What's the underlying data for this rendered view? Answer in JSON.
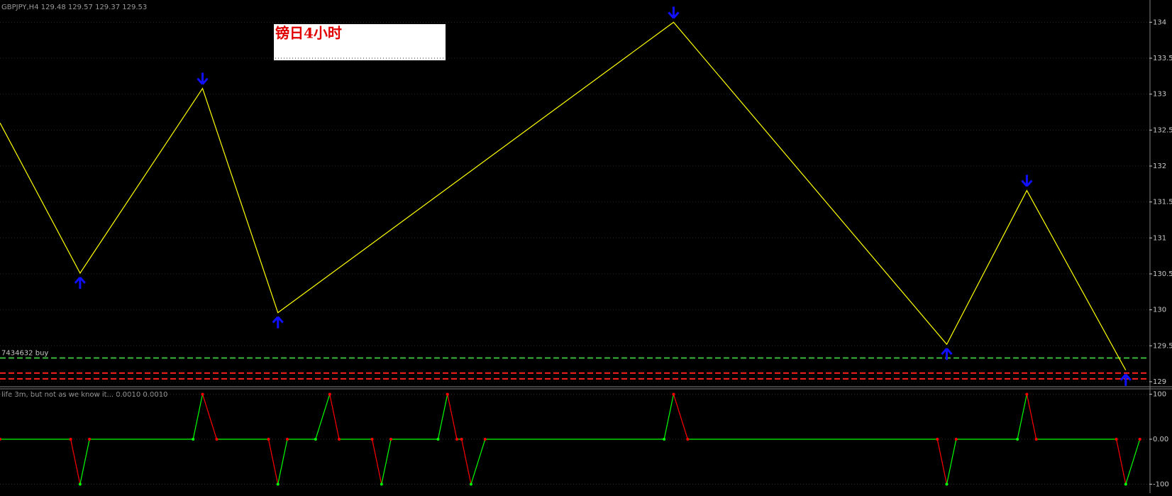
{
  "chart_data": [
    {
      "type": "line",
      "title": "GBPJPY,H4 129.48 129.57 129.37 129.53",
      "annotation": "镑日4小时",
      "x": [
        0,
        17,
        43,
        59,
        143,
        201,
        218,
        239
      ],
      "values": [
        132.6,
        130.51,
        133.08,
        129.96,
        134.0,
        129.52,
        131.66,
        129.16
      ],
      "color": "#ffff00",
      "marker_color": "#1010ff",
      "xlim": [
        0,
        244
      ],
      "ylim": [
        128.95,
        134.26
      ],
      "yticks": [
        129,
        129.5,
        130,
        130.5,
        131,
        131.5,
        132,
        132.5,
        133,
        133.5,
        134
      ],
      "grid": true,
      "levels": [
        {
          "value": 129.33,
          "color": "#3cb83c",
          "label": "7434632 buy"
        },
        {
          "value": 129.12,
          "color": "#ff2020"
        },
        {
          "value": 129.04,
          "color": "#ff2020"
        }
      ]
    },
    {
      "type": "oscillator",
      "title": "life 3m, but not as we know it... 0.0010 0.0010",
      "x": [
        0,
        15,
        17,
        19,
        41,
        43,
        46,
        57,
        59,
        61,
        67,
        70,
        72,
        79,
        81,
        83,
        93,
        95,
        97,
        98,
        100,
        103,
        141,
        143,
        146,
        199,
        201,
        203,
        216,
        218,
        220,
        237,
        239,
        242
      ],
      "values": [
        0,
        0,
        -100,
        0,
        0,
        100,
        0,
        0,
        -100,
        0,
        0,
        100,
        0,
        0,
        -100,
        0,
        0,
        100,
        0,
        0,
        -100,
        0,
        0,
        100,
        0,
        0,
        -100,
        0,
        0,
        100,
        0,
        0,
        -100,
        0
      ],
      "up_color": "#00ff00",
      "down_color": "#ff0000",
      "xlim": [
        0,
        244
      ],
      "ylim": [
        -120,
        112
      ],
      "yticks": [
        100,
        {
          "value": 0,
          "label": "0.00"
        },
        -100
      ]
    }
  ]
}
